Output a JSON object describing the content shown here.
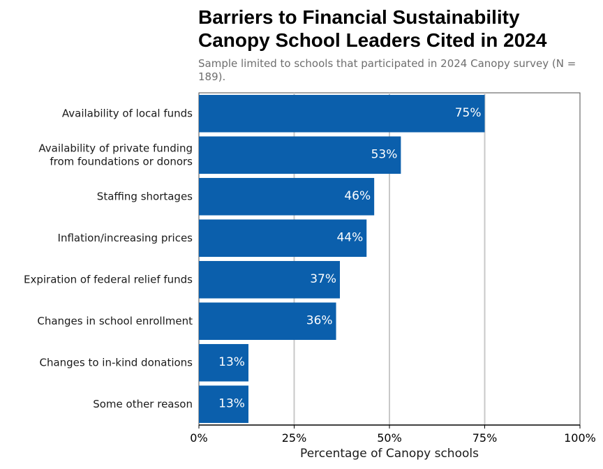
{
  "colors": {
    "bar": "#0b5fac",
    "bar_label": "#ffffff",
    "grid": "#c8c8c8",
    "axis": "#000000",
    "text": "#1a1a1a",
    "subtitle": "#6e6e6e"
  },
  "chart_data": {
    "type": "bar",
    "orientation": "horizontal",
    "title": "Barriers to Financial Sustainability Canopy School Leaders Cited in 2024",
    "title_lines": [
      "Barriers to Financial Sustainability",
      "Canopy School Leaders Cited in 2024"
    ],
    "subtitle": "Sample limited to schools that participated in 2024 Canopy survey (N = 189).",
    "xlabel": "Percentage of Canopy schools",
    "ylabel": "",
    "categories": [
      "Availability of local funds",
      "Availability of private funding\nfrom foundations or donors",
      "Staffing shortages",
      "Inflation/increasing prices",
      "Expiration of federal relief funds",
      "Changes in school enrollment",
      "Changes to in-kind donations",
      "Some other reason"
    ],
    "values": [
      75,
      53,
      46,
      44,
      37,
      36,
      13,
      13
    ],
    "value_labels": [
      "75%",
      "53%",
      "46%",
      "44%",
      "37%",
      "36%",
      "13%",
      "13%"
    ],
    "xlim": [
      0,
      100
    ],
    "xticks": [
      0,
      25,
      50,
      75,
      100
    ],
    "xtick_labels": [
      "0%",
      "25%",
      "50%",
      "75%",
      "100%"
    ],
    "grid": "vertical"
  }
}
